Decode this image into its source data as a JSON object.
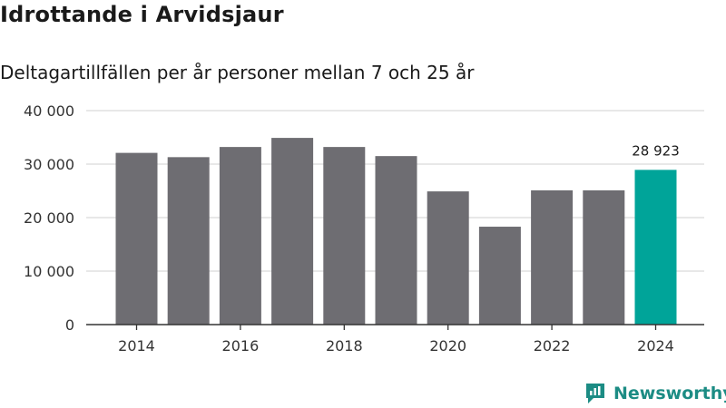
{
  "header": {
    "title": "Idrottande i Arvidsjaur",
    "subtitle": "Deltagartillfällen per år personer mellan 7 och 25 år"
  },
  "brand": {
    "name": "Newsworthy",
    "icon": "newsworthy-logo-icon",
    "color": "#1c8c84"
  },
  "colors": {
    "bar": "#6e6d72",
    "highlight": "#00a499",
    "grid": "#d9d9d9",
    "axis": "#333333"
  },
  "chart_data": {
    "type": "bar",
    "title": "",
    "xlabel": "",
    "ylabel": "",
    "x": [
      2014,
      2015,
      2016,
      2017,
      2018,
      2019,
      2020,
      2021,
      2022,
      2023,
      2024
    ],
    "values": [
      32100,
      31300,
      33200,
      34900,
      33200,
      31500,
      24900,
      18300,
      25100,
      25100,
      28923
    ],
    "x_ticks": [
      "2014",
      "2016",
      "2018",
      "2020",
      "2022",
      "2024"
    ],
    "y_ticks": [
      "0",
      "10 000",
      "20 000",
      "30 000",
      "40 000"
    ],
    "ylim": [
      0,
      40000
    ],
    "grid": true,
    "highlight_category": 2024,
    "data_labels": [
      {
        "x": 2024,
        "text": "28 923"
      }
    ]
  }
}
